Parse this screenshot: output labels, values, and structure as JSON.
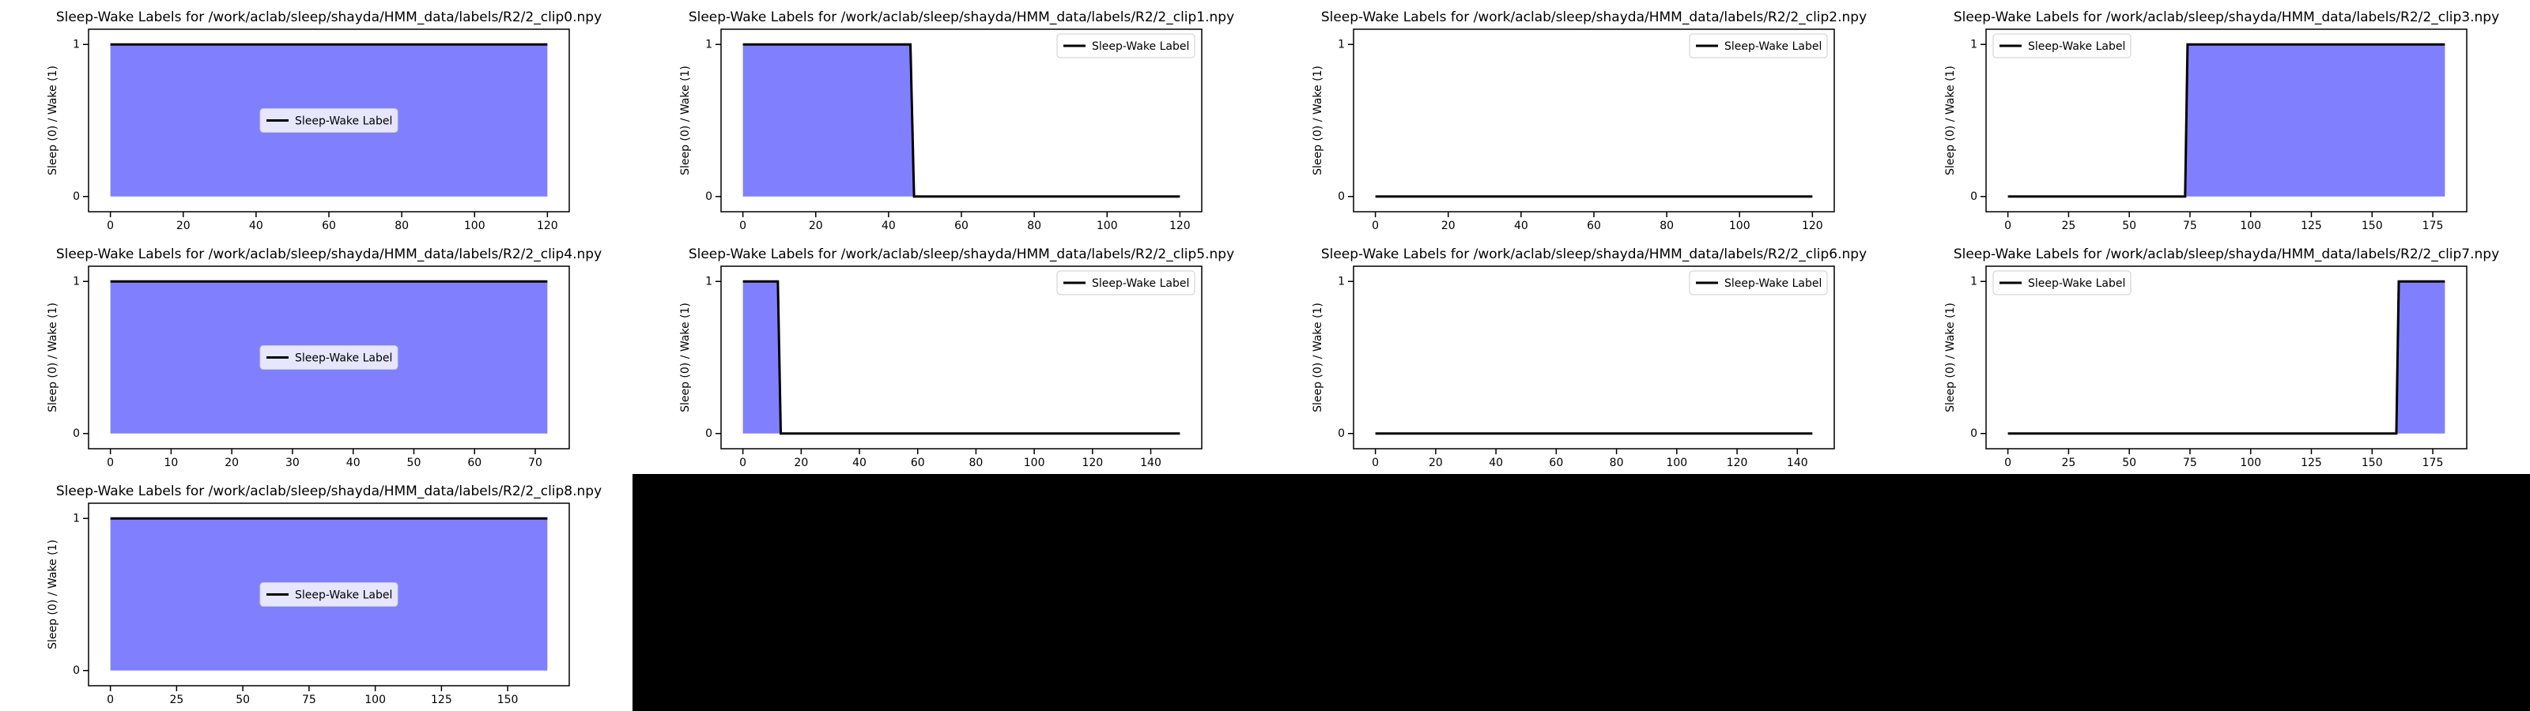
{
  "chart_data": [
    {
      "type": "line",
      "title": "Sleep-Wake Labels for /work/aclab/sleep/shayda/HMM_data/labels/R2/2_clip0.npy",
      "ylabel": "Sleep (0) / Wake (1)",
      "x": [
        0,
        120
      ],
      "series": [
        {
          "name": "Sleep-Wake Label",
          "color": "#000000",
          "fill_color": "#8080ff",
          "values": [
            1,
            1
          ]
        }
      ],
      "xlim": [
        -6,
        126
      ],
      "xticks": [
        0,
        20,
        40,
        60,
        80,
        100,
        120
      ],
      "ylim": [
        -0.1,
        1.1
      ],
      "yticks": [
        0,
        1
      ],
      "legend": "center"
    },
    {
      "type": "line",
      "title": "Sleep-Wake Labels for /work/aclab/sleep/shayda/HMM_data/labels/R2/2_clip1.npy",
      "ylabel": "Sleep (0) / Wake (1)",
      "x": [
        0,
        46,
        47,
        120
      ],
      "series": [
        {
          "name": "Sleep-Wake Label",
          "color": "#000000",
          "fill_color": "#8080ff",
          "values": [
            1,
            1,
            0,
            0
          ]
        }
      ],
      "xlim": [
        -6,
        126
      ],
      "xticks": [
        0,
        20,
        40,
        60,
        80,
        100,
        120
      ],
      "ylim": [
        -0.1,
        1.1
      ],
      "yticks": [
        0,
        1
      ],
      "legend": "upper right"
    },
    {
      "type": "line",
      "title": "Sleep-Wake Labels for /work/aclab/sleep/shayda/HMM_data/labels/R2/2_clip2.npy",
      "ylabel": "Sleep (0) / Wake (1)",
      "x": [
        0,
        120
      ],
      "series": [
        {
          "name": "Sleep-Wake Label",
          "color": "#000000",
          "fill_color": "#8080ff",
          "values": [
            0,
            0
          ]
        }
      ],
      "xlim": [
        -6,
        126
      ],
      "xticks": [
        0,
        20,
        40,
        60,
        80,
        100,
        120
      ],
      "ylim": [
        -0.1,
        1.1
      ],
      "yticks": [
        0,
        1
      ],
      "legend": "upper right"
    },
    {
      "type": "line",
      "title": "Sleep-Wake Labels for /work/aclab/sleep/shayda/HMM_data/labels/R2/2_clip3.npy",
      "ylabel": "Sleep (0) / Wake (1)",
      "x": [
        0,
        73,
        74,
        180
      ],
      "series": [
        {
          "name": "Sleep-Wake Label",
          "color": "#000000",
          "fill_color": "#8080ff",
          "values": [
            0,
            0,
            1,
            1
          ]
        }
      ],
      "xlim": [
        -9,
        189
      ],
      "xticks": [
        0,
        25,
        50,
        75,
        100,
        125,
        150,
        175
      ],
      "ylim": [
        -0.1,
        1.1
      ],
      "yticks": [
        0,
        1
      ],
      "legend": "upper left"
    },
    {
      "type": "line",
      "title": "Sleep-Wake Labels for /work/aclab/sleep/shayda/HMM_data/labels/R2/2_clip4.npy",
      "ylabel": "Sleep (0) / Wake (1)",
      "x": [
        0,
        72
      ],
      "series": [
        {
          "name": "Sleep-Wake Label",
          "color": "#000000",
          "fill_color": "#8080ff",
          "values": [
            1,
            1
          ]
        }
      ],
      "xlim": [
        -3.6,
        75.6
      ],
      "xticks": [
        0,
        10,
        20,
        30,
        40,
        50,
        60,
        70
      ],
      "ylim": [
        -0.1,
        1.1
      ],
      "yticks": [
        0,
        1
      ],
      "legend": "center"
    },
    {
      "type": "line",
      "title": "Sleep-Wake Labels for /work/aclab/sleep/shayda/HMM_data/labels/R2/2_clip5.npy",
      "ylabel": "Sleep (0) / Wake (1)",
      "x": [
        0,
        12,
        13,
        150
      ],
      "series": [
        {
          "name": "Sleep-Wake Label",
          "color": "#000000",
          "fill_color": "#8080ff",
          "values": [
            1,
            1,
            0,
            0
          ]
        }
      ],
      "xlim": [
        -7.5,
        157.5
      ],
      "xticks": [
        0,
        20,
        40,
        60,
        80,
        100,
        120,
        140
      ],
      "ylim": [
        -0.1,
        1.1
      ],
      "yticks": [
        0,
        1
      ],
      "legend": "upper right"
    },
    {
      "type": "line",
      "title": "Sleep-Wake Labels for /work/aclab/sleep/shayda/HMM_data/labels/R2/2_clip6.npy",
      "ylabel": "Sleep (0) / Wake (1)",
      "x": [
        0,
        145
      ],
      "series": [
        {
          "name": "Sleep-Wake Label",
          "color": "#000000",
          "fill_color": "#8080ff",
          "values": [
            0,
            0
          ]
        }
      ],
      "xlim": [
        -7.25,
        152.25
      ],
      "xticks": [
        0,
        20,
        40,
        60,
        80,
        100,
        120,
        140
      ],
      "ylim": [
        -0.1,
        1.1
      ],
      "yticks": [
        0,
        1
      ],
      "legend": "upper right"
    },
    {
      "type": "line",
      "title": "Sleep-Wake Labels for /work/aclab/sleep/shayda/HMM_data/labels/R2/2_clip7.npy",
      "ylabel": "Sleep (0) / Wake (1)",
      "x": [
        0,
        160,
        161,
        180
      ],
      "series": [
        {
          "name": "Sleep-Wake Label",
          "color": "#000000",
          "fill_color": "#8080ff",
          "values": [
            0,
            0,
            1,
            1
          ]
        }
      ],
      "xlim": [
        -9,
        189
      ],
      "xticks": [
        0,
        25,
        50,
        75,
        100,
        125,
        150,
        175
      ],
      "ylim": [
        -0.1,
        1.1
      ],
      "yticks": [
        0,
        1
      ],
      "legend": "upper left"
    },
    {
      "type": "line",
      "title": "Sleep-Wake Labels for /work/aclab/sleep/shayda/HMM_data/labels/R2/2_clip8.npy",
      "ylabel": "Sleep (0) / Wake (1)",
      "x": [
        0,
        165
      ],
      "series": [
        {
          "name": "Sleep-Wake Label",
          "color": "#000000",
          "fill_color": "#8080ff",
          "values": [
            1,
            1
          ]
        }
      ],
      "xlim": [
        -8.25,
        173.25
      ],
      "xticks": [
        0,
        25,
        50,
        75,
        100,
        125,
        150
      ],
      "ylim": [
        -0.1,
        1.1
      ],
      "yticks": [
        0,
        1
      ],
      "legend": "center"
    }
  ]
}
